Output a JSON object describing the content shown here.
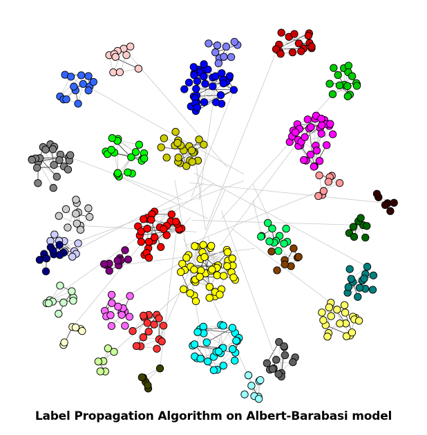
{
  "caption": "Label Propagation Algorithm on Albert-Barabasi model",
  "graph": {
    "edge_color": "#c8c8c8",
    "node_stroke": "#000000",
    "communities": [
      {
        "color": "#0000ff",
        "size": 38
      },
      {
        "color": "#ffff00",
        "size": 48
      },
      {
        "color": "#ff0000",
        "size": 30
      },
      {
        "color": "#00ffff",
        "size": 30
      },
      {
        "color": "#ff00ff",
        "size": 34
      },
      {
        "color": "#00ff00",
        "size": 20
      },
      {
        "color": "#cc0000",
        "size": 16
      },
      {
        "color": "#ffff66",
        "size": 20
      },
      {
        "color": "#808080",
        "size": 22
      },
      {
        "color": "#cccc00",
        "size": 22
      },
      {
        "color": "#00cc00",
        "size": 16
      },
      {
        "color": "#ff66ff",
        "size": 14
      },
      {
        "color": "#008080",
        "size": 14
      },
      {
        "color": "#ff3333",
        "size": 16
      },
      {
        "color": "#3366ff",
        "size": 14
      },
      {
        "color": "#00ff66",
        "size": 12
      },
      {
        "color": "#606060",
        "size": 14
      },
      {
        "color": "#ccffcc",
        "size": 10
      },
      {
        "color": "#ffcccc",
        "size": 10
      },
      {
        "color": "#ccccff",
        "size": 10
      },
      {
        "color": "#000080",
        "size": 10
      },
      {
        "color": "#800080",
        "size": 10
      },
      {
        "color": "#cccccc",
        "size": 12
      },
      {
        "color": "#8080ff",
        "size": 10
      },
      {
        "color": "#804000",
        "size": 8
      },
      {
        "color": "#006400",
        "size": 8
      },
      {
        "color": "#330000",
        "size": 6
      },
      {
        "color": "#99ffff",
        "size": 8
      },
      {
        "color": "#ff9999",
        "size": 8
      },
      {
        "color": "#404000",
        "size": 6
      },
      {
        "color": "#ccff99",
        "size": 6
      },
      {
        "color": "#ffffcc",
        "size": 6
      }
    ]
  }
}
